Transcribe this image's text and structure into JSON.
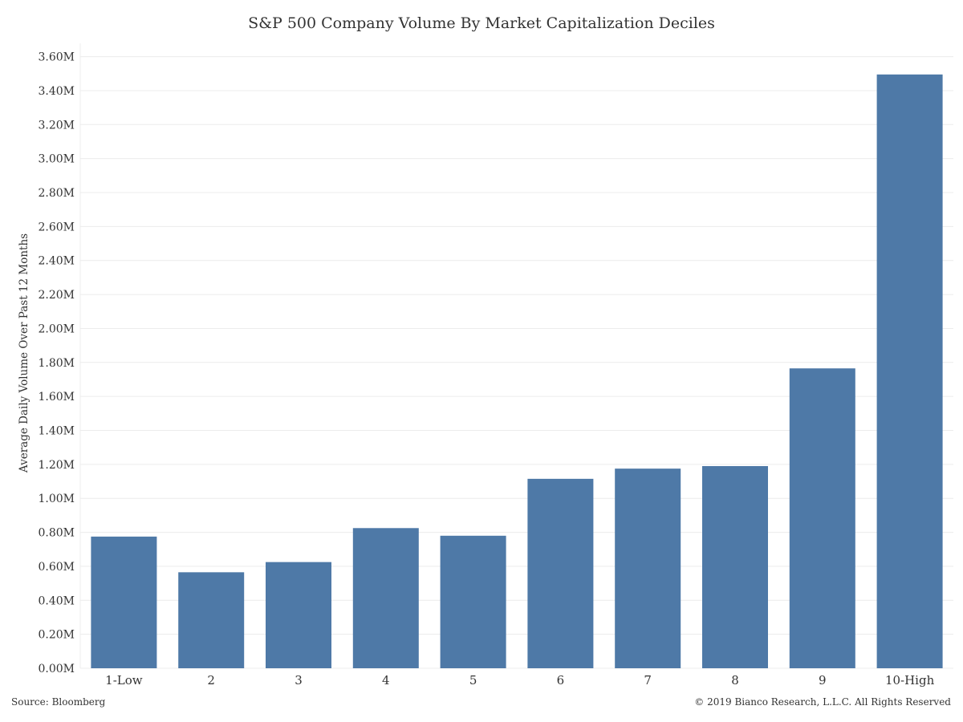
{
  "chart_data": {
    "type": "bar",
    "title": "S&P 500 Company Volume By Market Capitalization Deciles",
    "xlabel": "",
    "ylabel": "Average Daily Volume Over Past 12 Months",
    "categories": [
      "1-Low",
      "2",
      "3",
      "4",
      "5",
      "6",
      "7",
      "8",
      "9",
      "10-High"
    ],
    "values": [
      0.775,
      0.565,
      0.625,
      0.825,
      0.78,
      1.115,
      1.175,
      1.19,
      1.765,
      3.495
    ],
    "value_unit": "M",
    "ylim": [
      0,
      3.65
    ],
    "yticks": [
      0,
      0.2,
      0.4,
      0.6,
      0.8,
      1.0,
      1.2,
      1.4,
      1.6,
      1.8,
      2.0,
      2.2,
      2.4,
      2.6,
      2.8,
      3.0,
      3.2,
      3.4,
      3.6
    ],
    "ytick_labels": [
      "0.00M",
      "0.20M",
      "0.40M",
      "0.60M",
      "0.80M",
      "1.00M",
      "1.20M",
      "1.40M",
      "1.60M",
      "1.80M",
      "2.00M",
      "2.20M",
      "2.40M",
      "2.60M",
      "2.80M",
      "3.00M",
      "3.20M",
      "3.40M",
      "3.60M"
    ],
    "grid": true,
    "legend": "none",
    "bar_color": "#4e79a7",
    "grid_color": "#ececec"
  },
  "footer": {
    "source": "Source: Bloomberg",
    "copyright": "© 2019 Bianco Research, L.L.C. All Rights Reserved"
  }
}
